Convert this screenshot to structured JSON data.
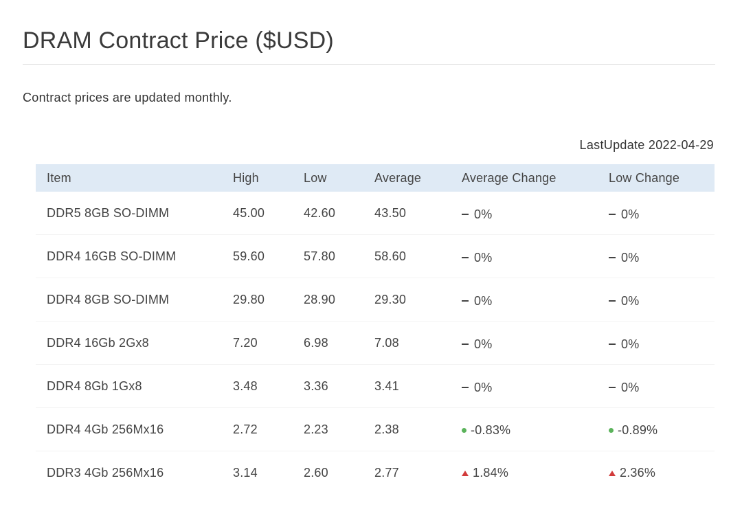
{
  "page": {
    "title": "DRAM Contract Price ($USD)",
    "intro": "Contract prices are updated monthly.",
    "last_update": "LastUpdate 2022-04-29"
  },
  "colors": {
    "header_bg": "#dfeaf5",
    "down": "#5bb35b",
    "up": "#d23b3b"
  },
  "table": {
    "headers": [
      "Item",
      "High",
      "Low",
      "Average",
      "Average Change",
      "Low Change"
    ],
    "rows": [
      {
        "item": "DDR5 8GB SO-DIMM",
        "high": "45.00",
        "low": "42.60",
        "average": "43.50",
        "avg_change": {
          "dir": "flat",
          "icon": "flat-dash-icon",
          "text": "0%"
        },
        "low_change": {
          "dir": "flat",
          "icon": "flat-dash-icon",
          "text": "0%"
        }
      },
      {
        "item": "DDR4 16GB SO-DIMM",
        "high": "59.60",
        "low": "57.80",
        "average": "58.60",
        "avg_change": {
          "dir": "flat",
          "icon": "flat-dash-icon",
          "text": "0%"
        },
        "low_change": {
          "dir": "flat",
          "icon": "flat-dash-icon",
          "text": "0%"
        }
      },
      {
        "item": "DDR4 8GB SO-DIMM",
        "high": "29.80",
        "low": "28.90",
        "average": "29.30",
        "avg_change": {
          "dir": "flat",
          "icon": "flat-dash-icon",
          "text": "0%"
        },
        "low_change": {
          "dir": "flat",
          "icon": "flat-dash-icon",
          "text": "0%"
        }
      },
      {
        "item": "DDR4 16Gb 2Gx8",
        "high": "7.20",
        "low": "6.98",
        "average": "7.08",
        "avg_change": {
          "dir": "flat",
          "icon": "flat-dash-icon",
          "text": "0%"
        },
        "low_change": {
          "dir": "flat",
          "icon": "flat-dash-icon",
          "text": "0%"
        }
      },
      {
        "item": "DDR4 8Gb 1Gx8",
        "high": "3.48",
        "low": "3.36",
        "average": "3.41",
        "avg_change": {
          "dir": "flat",
          "icon": "flat-dash-icon",
          "text": "0%"
        },
        "low_change": {
          "dir": "flat",
          "icon": "flat-dash-icon",
          "text": "0%"
        }
      },
      {
        "item": "DDR4 4Gb 256Mx16",
        "high": "2.72",
        "low": "2.23",
        "average": "2.38",
        "avg_change": {
          "dir": "down",
          "icon": "green-dot-icon",
          "text": "-0.83%"
        },
        "low_change": {
          "dir": "down",
          "icon": "green-dot-icon",
          "text": "-0.89%"
        }
      },
      {
        "item": "DDR3 4Gb 256Mx16",
        "high": "3.14",
        "low": "2.60",
        "average": "2.77",
        "avg_change": {
          "dir": "up",
          "icon": "red-triangle-up-icon",
          "text": "1.84%"
        },
        "low_change": {
          "dir": "up",
          "icon": "red-triangle-up-icon",
          "text": "2.36%"
        }
      }
    ]
  }
}
